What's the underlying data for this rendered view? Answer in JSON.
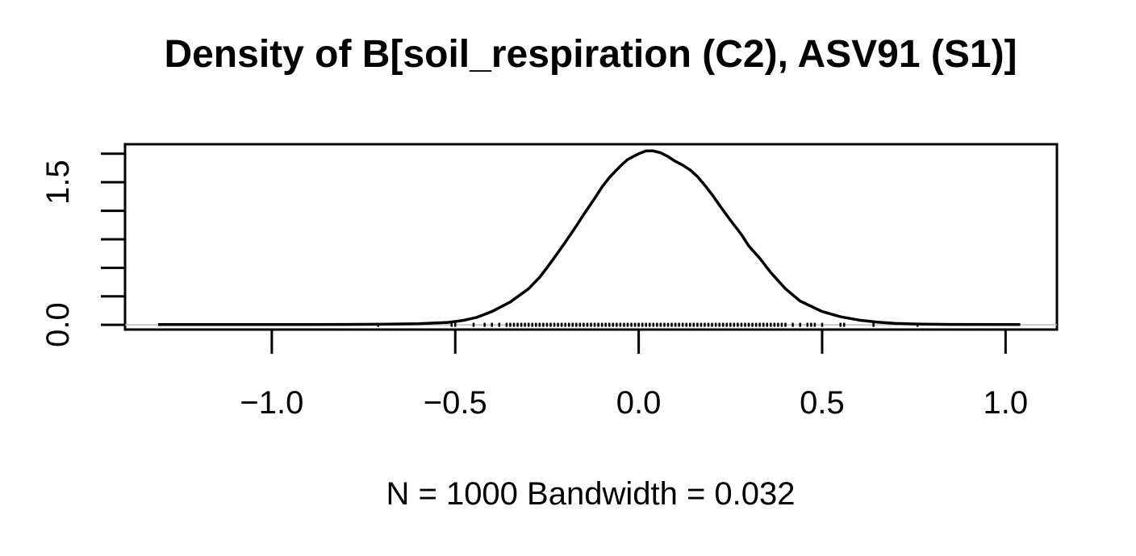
{
  "chart_data": {
    "type": "line",
    "title": "Density of B[soil_respiration (C2), ASV91 (S1)]",
    "xlabel": "N = 1000   Bandwidth = 0.032",
    "ylabel": "",
    "xlim": [
      -1.4,
      1.14
    ],
    "ylim": [
      -0.05,
      1.9
    ],
    "x_ticks": [
      -1.0,
      -0.5,
      0.0,
      0.5,
      1.0
    ],
    "x_tick_labels": [
      "−1.0",
      "−0.5",
      "0.0",
      "0.5",
      "1.0"
    ],
    "y_ticks": [
      0.0,
      0.3,
      0.6,
      0.9,
      1.2,
      1.5,
      1.8
    ],
    "y_tick_labels": [
      "0.0",
      "",
      "",
      "",
      "",
      "1.5",
      ""
    ],
    "grid": false,
    "legend": "none",
    "line_color": "#000000",
    "zero_line_color": "#bebebe",
    "series": [
      {
        "x": [
          -1.31,
          -1.0,
          -0.8,
          -0.7,
          -0.6,
          -0.52,
          -0.48,
          -0.44,
          -0.4,
          -0.35,
          -0.3,
          -0.27,
          -0.25,
          -0.22,
          -0.2,
          -0.17,
          -0.15,
          -0.12,
          -0.1,
          -0.08,
          -0.05,
          -0.03,
          0.0,
          0.02,
          0.04,
          0.06,
          0.08,
          0.1,
          0.12,
          0.14,
          0.16,
          0.18,
          0.2,
          0.22,
          0.25,
          0.28,
          0.3,
          0.33,
          0.36,
          0.4,
          0.44,
          0.5,
          0.55,
          0.6,
          0.65,
          0.7,
          0.76,
          0.85,
          1.04
        ],
        "y": [
          0.003,
          0.003,
          0.004,
          0.006,
          0.012,
          0.025,
          0.045,
          0.08,
          0.14,
          0.24,
          0.38,
          0.5,
          0.6,
          0.76,
          0.87,
          1.04,
          1.16,
          1.33,
          1.45,
          1.55,
          1.67,
          1.74,
          1.8,
          1.83,
          1.83,
          1.81,
          1.77,
          1.72,
          1.68,
          1.63,
          1.56,
          1.47,
          1.37,
          1.26,
          1.1,
          0.95,
          0.83,
          0.7,
          0.55,
          0.38,
          0.25,
          0.14,
          0.085,
          0.05,
          0.028,
          0.015,
          0.008,
          0.004,
          0.003
        ]
      }
    ],
    "rug_x": [
      -0.71,
      -0.51,
      -0.5,
      -0.45,
      -0.42,
      -0.4,
      -0.38,
      -0.36,
      -0.35,
      -0.34,
      -0.33,
      -0.32,
      -0.31,
      -0.3,
      -0.29,
      -0.28,
      -0.27,
      -0.26,
      -0.25,
      -0.24,
      -0.23,
      -0.22,
      -0.21,
      -0.2,
      -0.19,
      -0.18,
      -0.17,
      -0.16,
      -0.15,
      -0.14,
      -0.13,
      -0.12,
      -0.11,
      -0.1,
      -0.09,
      -0.08,
      -0.07,
      -0.06,
      -0.05,
      -0.04,
      -0.03,
      -0.02,
      -0.01,
      0.0,
      0.01,
      0.02,
      0.03,
      0.04,
      0.05,
      0.06,
      0.07,
      0.08,
      0.09,
      0.1,
      0.11,
      0.12,
      0.13,
      0.14,
      0.15,
      0.16,
      0.17,
      0.18,
      0.19,
      0.2,
      0.21,
      0.22,
      0.23,
      0.24,
      0.25,
      0.26,
      0.27,
      0.28,
      0.29,
      0.3,
      0.31,
      0.32,
      0.33,
      0.34,
      0.35,
      0.36,
      0.37,
      0.38,
      0.39,
      0.4,
      0.42,
      0.44,
      0.46,
      0.47,
      0.48,
      0.5,
      0.55,
      0.56,
      0.64,
      0.76
    ]
  }
}
